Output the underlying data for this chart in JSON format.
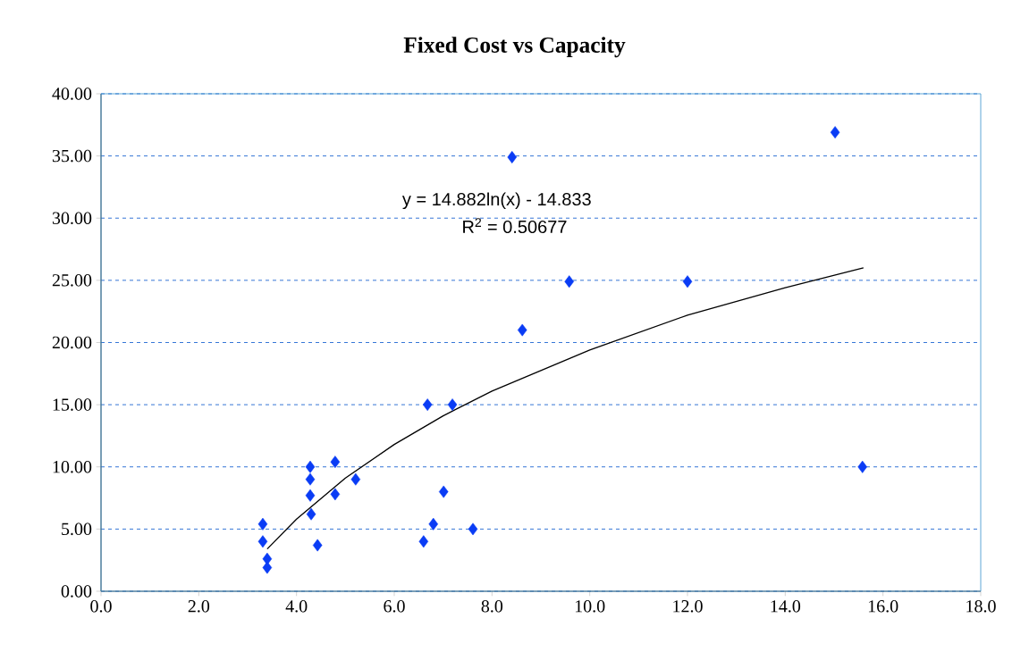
{
  "chart_data": {
    "type": "scatter",
    "title": "Fixed Cost vs Capacity",
    "series": [
      {
        "color": "#0a3cf5",
        "marker": "diamond",
        "x": [
          3.31,
          3.31,
          3.4,
          3.4,
          4.28,
          4.28,
          4.28,
          4.3,
          4.43,
          4.79,
          4.79,
          5.21,
          6.6,
          6.68,
          6.8,
          7.01,
          7.19,
          7.61,
          8.41,
          8.62,
          9.58,
          12.0,
          15.02,
          15.58
        ],
        "values": [
          5.4,
          4.0,
          2.6,
          1.9,
          10.0,
          9.0,
          7.7,
          6.2,
          3.7,
          10.4,
          7.8,
          9.0,
          4.0,
          15.0,
          5.4,
          8.0,
          15.0,
          5.0,
          34.9,
          21.0,
          24.9,
          24.9,
          36.9,
          10.0
        ]
      },
      {
        "type": "line",
        "color": "#000000",
        "marker": "none",
        "x": [
          3.4,
          4,
          5,
          6,
          7,
          8,
          10,
          12,
          14,
          15.6
        ],
        "values": [
          3.4,
          5.8,
          9.1,
          11.8,
          14.1,
          16.1,
          19.4,
          22.2,
          24.4,
          26.0
        ]
      }
    ],
    "annotations": [
      "y = 14.882ln(x) - 14.833",
      "R$^{2}$ = 0.50677"
    ],
    "xlim": [
      0,
      18
    ],
    "ylim": [
      0,
      40
    ],
    "xticks": [
      {
        "value": 0,
        "label": "0.0"
      },
      {
        "value": 2,
        "label": "2.0"
      },
      {
        "value": 4,
        "label": "4.0"
      },
      {
        "value": 6,
        "label": "6.0"
      },
      {
        "value": 8,
        "label": "8.0"
      },
      {
        "value": 10,
        "label": "10.0"
      },
      {
        "value": 12,
        "label": "12.0"
      },
      {
        "value": 14,
        "label": "14.0"
      },
      {
        "value": 16,
        "label": "16.0"
      },
      {
        "value": 18,
        "label": "18.0"
      }
    ],
    "yticks": [
      {
        "value": 0,
        "label": "0.00"
      },
      {
        "value": 5,
        "label": "5.00"
      },
      {
        "value": 10,
        "label": "10.00"
      },
      {
        "value": 15,
        "label": "15.00"
      },
      {
        "value": 20,
        "label": "20.00"
      },
      {
        "value": 25,
        "label": "25.00"
      },
      {
        "value": 30,
        "label": "30.00"
      },
      {
        "value": 35,
        "label": "35.00"
      },
      {
        "value": 40,
        "label": "40.00"
      }
    ],
    "grid": "y"
  }
}
